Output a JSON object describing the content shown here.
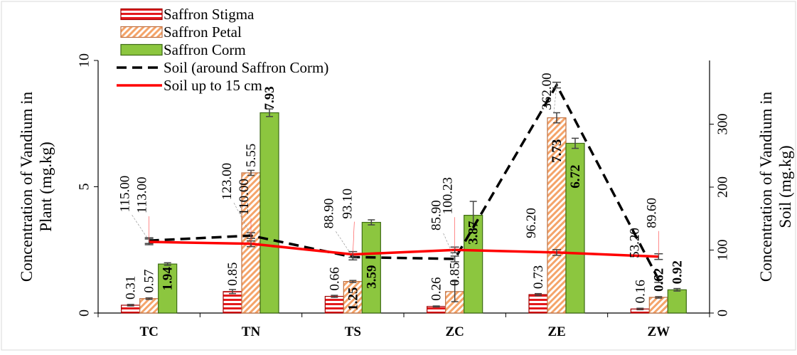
{
  "chart_data": {
    "type": "bar",
    "categories": [
      "TC",
      "TN",
      "TS",
      "ZC",
      "ZE",
      "ZW"
    ],
    "series": [
      {
        "name": "Saffron Stigma",
        "axis": "left",
        "kind": "bar",
        "pattern": "horizontal-stripes",
        "color": "#e41a1c",
        "values": [
          0.31,
          0.85,
          0.66,
          0.26,
          0.73,
          0.16
        ],
        "labels": [
          "0.31",
          "0.85",
          "0.66",
          "0.26",
          "0.73",
          "0.16"
        ]
      },
      {
        "name": "Saffron Petal",
        "axis": "left",
        "kind": "bar",
        "pattern": "diagonal-stripes",
        "color": "#f4a46a",
        "values": [
          0.57,
          5.55,
          1.25,
          0.85,
          7.73,
          0.62
        ],
        "labels": [
          "0.57",
          "5.55",
          "1.25",
          "0.85",
          "7.73",
          "0.62"
        ],
        "bold_labels": [
          false,
          false,
          true,
          false,
          true,
          true
        ]
      },
      {
        "name": "Saffron Corm",
        "axis": "left",
        "kind": "bar",
        "pattern": "solid",
        "color": "#8cc63f",
        "values": [
          1.94,
          7.93,
          3.59,
          3.87,
          6.72,
          0.92
        ],
        "labels": [
          "1.94",
          "7.93",
          "3.59",
          "3.87",
          "6.72",
          "0.92"
        ],
        "bold_labels": [
          true,
          true,
          true,
          true,
          true,
          true
        ]
      },
      {
        "name": "Soil (around Saffron Corm)",
        "axis": "right",
        "kind": "line",
        "style": "dashed",
        "color": "#000000",
        "values": [
          115.0,
          123.0,
          88.9,
          85.9,
          362.0,
          53.2
        ],
        "labels": [
          "115.00",
          "123.00",
          "88.90",
          "85.90",
          "362.00",
          "53.20"
        ]
      },
      {
        "name": "Soil up to 15 cm",
        "axis": "right",
        "kind": "line",
        "style": "solid",
        "color": "#ff0000",
        "values": [
          113.0,
          110.0,
          93.1,
          100.23,
          96.2,
          89.6
        ],
        "labels": [
          "113.00",
          "110.00",
          "93.10",
          "100.23",
          "96.20",
          "89.60"
        ]
      }
    ],
    "left_axis": {
      "label": "Concentration of Vandium in Plant  (mg.kg)",
      "range": [
        0,
        10
      ],
      "ticks": [
        "0",
        "5",
        "10"
      ]
    },
    "right_axis": {
      "label": "Concentration of Vandium in Soil  (mg.kg)",
      "range": [
        0,
        360
      ],
      "ticks": [
        "0",
        "100",
        "200",
        "300"
      ]
    },
    "grid": false,
    "legend_position": "top-left"
  }
}
